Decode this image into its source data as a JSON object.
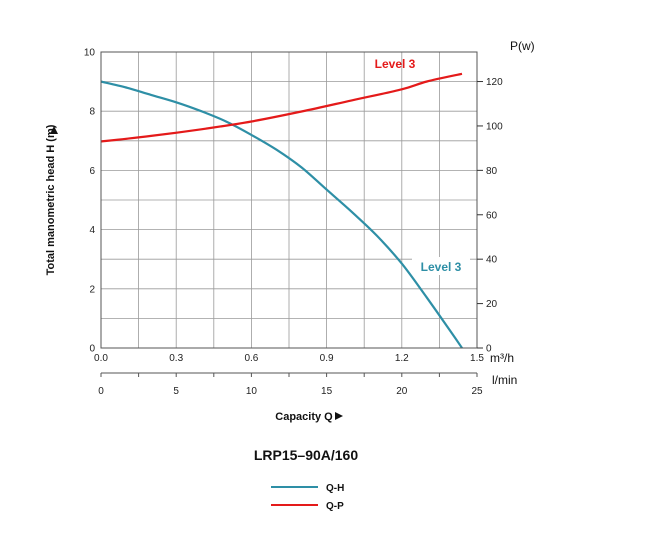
{
  "chart_data": {
    "type": "line",
    "title": "LRP15–90A/160",
    "ylabel": "Total manometric head H (m)",
    "xlabel": "Capacity Q",
    "x_axis": {
      "unit": "m³/h",
      "lim": [
        0,
        1.5
      ],
      "ticks": [
        0.0,
        0.3,
        0.6,
        0.9,
        1.2,
        1.5
      ],
      "tick_labels": [
        "0.0",
        "0.3",
        "0.6",
        "0.9",
        "1.2",
        "1.5"
      ]
    },
    "x_axis_secondary": {
      "unit": "l/min",
      "lim": [
        0,
        25
      ],
      "ticks": [
        0,
        5,
        10,
        15,
        20,
        25
      ],
      "tick_labels": [
        "0",
        "5",
        "10",
        "15",
        "20",
        "25"
      ]
    },
    "y_axis": {
      "lim": [
        0,
        10
      ],
      "ticks": [
        0,
        2,
        4,
        6,
        8,
        10
      ],
      "tick_labels": [
        "0",
        "2",
        "4",
        "6",
        "8",
        "10"
      ]
    },
    "y_axis_right": {
      "label": "P(w)",
      "lim": [
        0,
        133.3
      ],
      "ticks": [
        0,
        20,
        40,
        60,
        80,
        100,
        120
      ],
      "tick_labels": [
        "0",
        "20",
        "40",
        "60",
        "80",
        "100",
        "120"
      ]
    },
    "grid": true,
    "series": [
      {
        "name": "Q-H",
        "axis": "left",
        "color": "#2e8fa6",
        "label": "Level 3",
        "x": [
          0.0,
          0.1,
          0.2,
          0.3,
          0.4,
          0.5,
          0.6,
          0.7,
          0.8,
          0.9,
          1.0,
          1.1,
          1.2,
          1.3,
          1.4,
          1.44
        ],
        "y": [
          9.0,
          8.8,
          8.55,
          8.3,
          8.0,
          7.65,
          7.2,
          6.7,
          6.1,
          5.35,
          4.6,
          3.8,
          2.85,
          1.7,
          0.5,
          0.0
        ]
      },
      {
        "name": "Q-P",
        "axis": "right",
        "color": "#e41a1a",
        "label": "Level 3",
        "x": [
          0.0,
          0.2,
          0.4,
          0.6,
          0.8,
          1.0,
          1.2,
          1.3,
          1.44
        ],
        "y": [
          93,
          95.5,
          98.5,
          102,
          106.5,
          111.5,
          116.5,
          120,
          123.5
        ]
      }
    ],
    "legend": [
      "Q-H",
      "Q-P"
    ],
    "legend_placement": "bottom-center"
  }
}
